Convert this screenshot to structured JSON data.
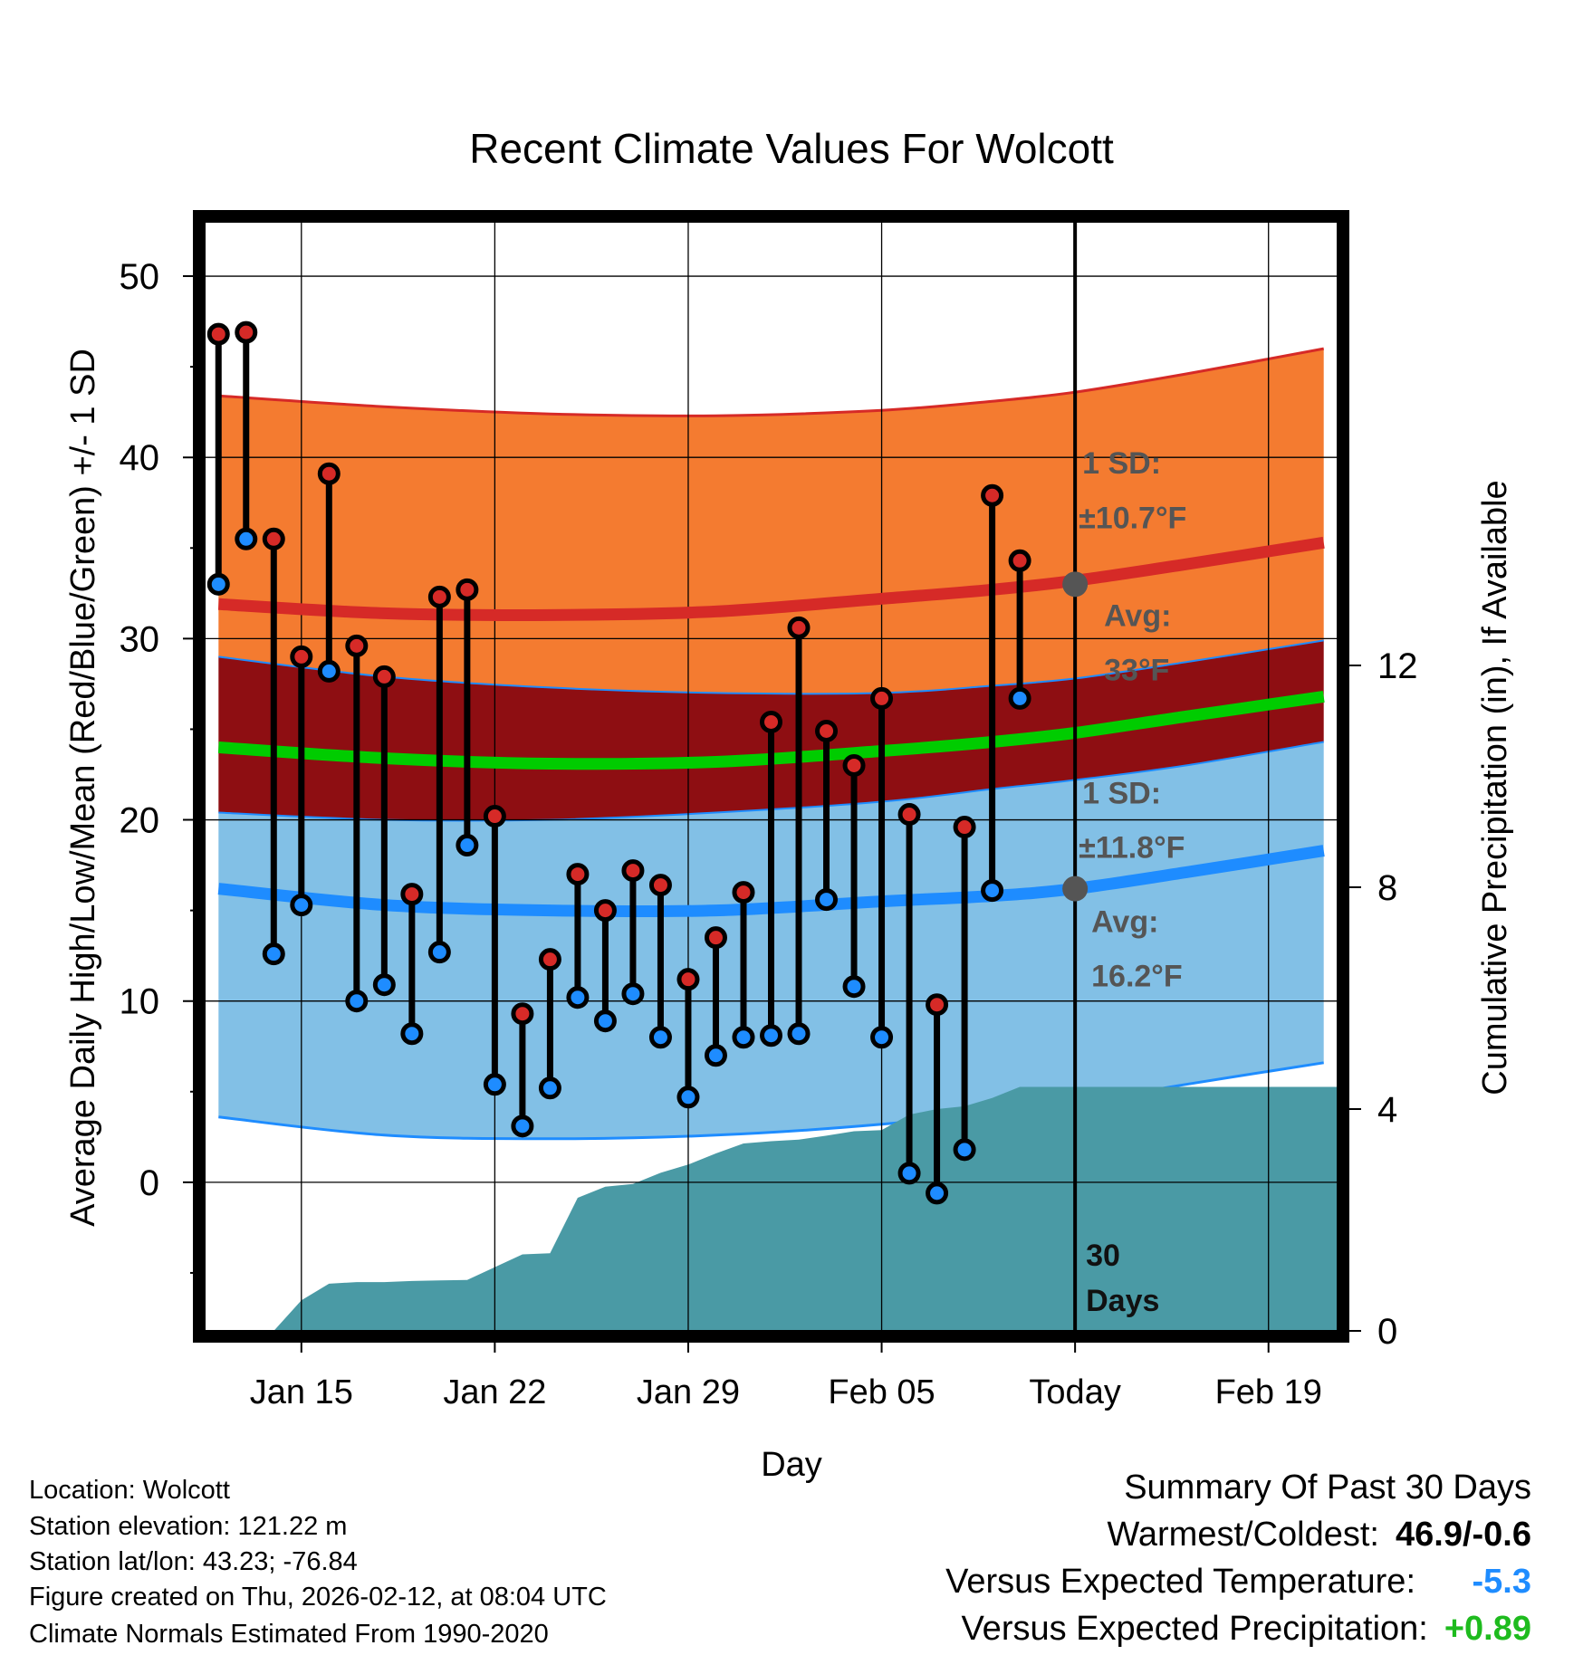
{
  "chart_data": {
    "type": "line",
    "title": "Recent Climate Values For Wolcott",
    "xlabel": "Day",
    "ylabel_left": "Average Daily High/Low/Mean (Red/Blue/Green) +/- 1 SD",
    "ylabel_right": "Cumulative Precipitation (in), If Available",
    "x_start_day": 11.5,
    "x_end_day": 52.5,
    "today_day": 43,
    "ylim": [
      -8.2,
      53
    ],
    "yticks": [
      0,
      10,
      20,
      30,
      40,
      50
    ],
    "right_ylim": [
      0,
      20
    ],
    "right_yticks": [
      0,
      4,
      8,
      12
    ],
    "xticks": [
      {
        "day": 15,
        "label": "Jan 15"
      },
      {
        "day": 22,
        "label": "Jan 22"
      },
      {
        "day": 29,
        "label": "Jan 29"
      },
      {
        "day": 36,
        "label": "Feb 05"
      },
      {
        "day": 43,
        "label": "Today"
      },
      {
        "day": 50,
        "label": "Feb 19"
      }
    ],
    "normals": {
      "days": [
        12,
        18,
        24,
        30,
        36,
        40,
        43,
        47,
        52
      ],
      "avg_high": [
        31.9,
        31.4,
        31.3,
        31.5,
        32.2,
        32.7,
        33.2,
        34.1,
        35.3
      ],
      "avg_low": [
        16.2,
        15.3,
        15.0,
        15.0,
        15.5,
        15.8,
        16.2,
        17.1,
        18.3
      ],
      "avg_mean": [
        24.0,
        23.4,
        23.1,
        23.2,
        23.8,
        24.3,
        24.8,
        25.7,
        26.8
      ],
      "high_sd_upper": [
        43.4,
        42.8,
        42.4,
        42.3,
        42.6,
        43.1,
        43.6,
        44.6,
        46.0
      ],
      "high_sd_lower": [
        29.0,
        27.9,
        27.3,
        27.0,
        27.0,
        27.4,
        27.8,
        28.7,
        29.9
      ],
      "low_sd_upper": [
        20.4,
        20.0,
        20.0,
        20.4,
        21.0,
        21.7,
        22.2,
        23.0,
        24.3
      ],
      "low_sd_lower": [
        3.6,
        2.6,
        2.4,
        2.6,
        3.2,
        3.9,
        4.4,
        5.4,
        6.6
      ]
    },
    "daily_days": [
      12,
      13,
      14,
      15,
      16,
      17,
      18,
      19,
      20,
      21,
      22,
      23,
      24,
      25,
      26,
      27,
      28,
      29,
      30,
      31,
      32,
      33,
      34,
      35,
      36,
      37,
      38,
      39,
      40,
      41,
      42
    ],
    "daily_high": [
      46.8,
      46.9,
      35.5,
      29.0,
      39.1,
      29.6,
      27.9,
      15.9,
      32.3,
      32.7,
      20.2,
      9.3,
      12.3,
      17.0,
      15.0,
      17.2,
      16.4,
      11.2,
      13.5,
      16.0,
      25.4,
      30.6,
      24.9,
      23.0,
      26.7,
      20.3,
      9.8,
      19.6,
      37.9,
      34.3,
      null
    ],
    "daily_low": [
      33.0,
      35.5,
      12.6,
      15.3,
      28.2,
      10.0,
      10.9,
      8.2,
      12.7,
      18.6,
      5.4,
      3.1,
      5.2,
      10.2,
      8.9,
      10.4,
      8.0,
      4.7,
      7.0,
      8.0,
      8.1,
      8.2,
      15.6,
      10.8,
      8.0,
      0.5,
      -0.6,
      1.8,
      16.1,
      26.7,
      null
    ],
    "precip_days": [
      12,
      14,
      15,
      16,
      17,
      18,
      19,
      20,
      21,
      22,
      23,
      24,
      25,
      26,
      27,
      28,
      29,
      30,
      31,
      32,
      33,
      34,
      35,
      36,
      37,
      38,
      39,
      40,
      41,
      42,
      43,
      52.5
    ],
    "precip_cum": [
      0.0,
      0.0,
      0.55,
      0.85,
      0.88,
      0.88,
      0.9,
      0.91,
      0.92,
      1.15,
      1.38,
      1.4,
      2.4,
      2.6,
      2.65,
      2.85,
      3.0,
      3.2,
      3.38,
      3.42,
      3.45,
      3.52,
      3.6,
      3.62,
      3.9,
      4.0,
      4.05,
      4.2,
      4.4,
      4.4,
      4.4,
      4.4
    ],
    "annotations": {
      "high_sd_line1": "1 SD:",
      "high_sd_line2": "±10.7°F",
      "high_avg_line1": "Avg:",
      "high_avg_line2": "33°F",
      "low_sd_line1": "1 SD:",
      "low_sd_line2": "±11.8°F",
      "low_avg_line1": "Avg:",
      "low_avg_line2": "16.2°F",
      "days_line1": "30",
      "days_line2": "Days",
      "high_avg_value": 33.0,
      "low_avg_value": 16.2
    },
    "colors": {
      "high_band": "#F47B30",
      "high_line": "#D62A27",
      "mean_band": "#8E0E12",
      "mean_line": "#00CC00",
      "low_band": "#82C0E6",
      "low_line": "#1E8CFF",
      "precip": "#4A9AA5",
      "high_dot": "#D62A27",
      "low_dot": "#1E8CFF",
      "annotation": "#555555"
    }
  },
  "info": {
    "location": "Location: Wolcott",
    "elevation": "Station elevation: 121.22 m",
    "latlon": "Station lat/lon: 43.23; -76.84",
    "created": "Figure created on Thu, 2026-02-12, at 08:04 UTC",
    "normals": "Climate Normals Estimated From 1990-2020"
  },
  "summary": {
    "title": "Summary Of Past 30 Days",
    "warmest_label": "Warmest/Coldest:",
    "warmest_value": "46.9/-0.6",
    "temp_label": "Versus Expected Temperature:",
    "temp_value": "-5.3",
    "temp_color": "#1E8CFF",
    "precip_label": "Versus Expected Precipitation:",
    "precip_value": "+0.89",
    "precip_color": "#1EBB1E"
  }
}
